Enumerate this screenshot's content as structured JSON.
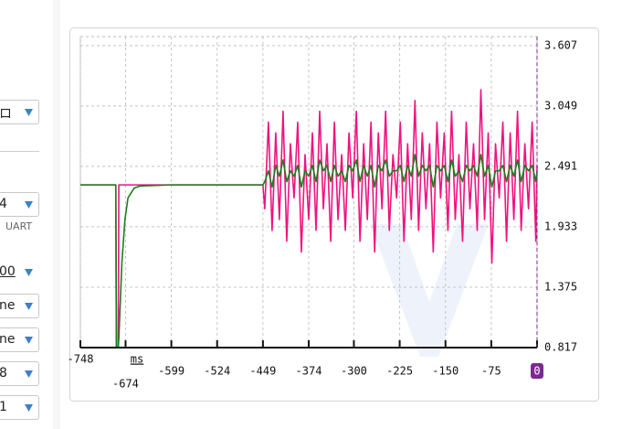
{
  "sidebar": {
    "items": [
      "ロ",
      "4",
      "UART",
      "00",
      "ne",
      "ne",
      "8",
      "1"
    ]
  },
  "chart_data": {
    "type": "line",
    "x_label": "ms",
    "x": [
      -748,
      -690,
      -689,
      -686,
      -685,
      -680,
      -675,
      -670,
      -660,
      -650,
      -600,
      -500,
      -452,
      -449,
      -446,
      -440,
      -434,
      -428,
      -422,
      -416,
      -410,
      -404,
      -398,
      -392,
      -386,
      -380,
      -374,
      -368,
      -362,
      -356,
      -350,
      -344,
      -338,
      -332,
      -326,
      -320,
      -314,
      -308,
      -302,
      -296,
      -290,
      -284,
      -278,
      -272,
      -266,
      -260,
      -254,
      -248,
      -242,
      -236,
      -230,
      -224,
      -218,
      -212,
      -206,
      -200,
      -194,
      -188,
      -182,
      -176,
      -170,
      -164,
      -158,
      -152,
      -146,
      -140,
      -134,
      -128,
      -122,
      -116,
      -110,
      -104,
      -98,
      -92,
      -86,
      -80,
      -74,
      -68,
      -62,
      -56,
      -50,
      -44,
      -38,
      -32,
      -26,
      -20,
      -14,
      -8,
      -2,
      0
    ],
    "series": [
      {
        "color": "#f0127f",
        "values": [
          2.32,
          2.32,
          0.82,
          0.82,
          2.32,
          2.32,
          2.32,
          2.32,
          2.32,
          2.32,
          2.32,
          2.32,
          2.32,
          2.32,
          2.1,
          2.9,
          1.9,
          2.8,
          2.0,
          3.0,
          1.8,
          2.7,
          2.2,
          2.9,
          1.7,
          2.6,
          2.0,
          2.8,
          1.9,
          3.0,
          2.1,
          2.7,
          1.8,
          2.9,
          2.0,
          2.6,
          1.9,
          2.8,
          2.2,
          3.0,
          1.8,
          2.7,
          2.0,
          2.9,
          1.7,
          2.8,
          2.1,
          3.0,
          1.9,
          2.6,
          2.2,
          2.9,
          1.8,
          2.7,
          2.0,
          3.1,
          1.9,
          2.8,
          2.1,
          2.7,
          1.7,
          2.9,
          2.2,
          2.8,
          1.9,
          3.0,
          2.0,
          2.6,
          1.8,
          2.9,
          2.1,
          2.7,
          1.9,
          3.2,
          2.0,
          2.8,
          1.6,
          2.7,
          2.2,
          2.9,
          1.8,
          2.8,
          2.0,
          3.0,
          1.9,
          2.7,
          2.1,
          2.9,
          1.8,
          2.5
        ]
      },
      {
        "color": "#1e7d1e",
        "values": [
          2.32,
          2.32,
          0.82,
          0.82,
          0.9,
          1.6,
          2.0,
          2.2,
          2.29,
          2.31,
          2.32,
          2.32,
          2.32,
          2.32,
          2.35,
          2.45,
          2.3,
          2.5,
          2.4,
          2.55,
          2.35,
          2.45,
          2.4,
          2.5,
          2.3,
          2.45,
          2.4,
          2.5,
          2.35,
          2.55,
          2.45,
          2.5,
          2.35,
          2.5,
          2.4,
          2.45,
          2.35,
          2.5,
          2.45,
          2.55,
          2.35,
          2.5,
          2.4,
          2.5,
          2.3,
          2.5,
          2.45,
          2.55,
          2.4,
          2.45,
          2.45,
          2.5,
          2.35,
          2.5,
          2.4,
          2.6,
          2.4,
          2.5,
          2.45,
          2.5,
          2.3,
          2.5,
          2.45,
          2.5,
          2.35,
          2.55,
          2.4,
          2.45,
          2.35,
          2.5,
          2.45,
          2.5,
          2.4,
          2.6,
          2.4,
          2.5,
          2.3,
          2.45,
          2.45,
          2.5,
          2.35,
          2.5,
          2.4,
          2.55,
          2.35,
          2.5,
          2.45,
          2.5,
          2.35,
          2.45
        ]
      }
    ],
    "xlim": [
      -748,
      0
    ],
    "xticks": [
      -748,
      -674,
      -599,
      -524,
      -449,
      -374,
      -300,
      -225,
      -150,
      -75,
      0
    ],
    "ylim": [
      0.817,
      3.69
    ],
    "yticks": [
      0.817,
      1.375,
      1.933,
      2.491,
      3.049,
      3.607
    ],
    "grid": true,
    "cursor_color": "#7b2a8f"
  }
}
